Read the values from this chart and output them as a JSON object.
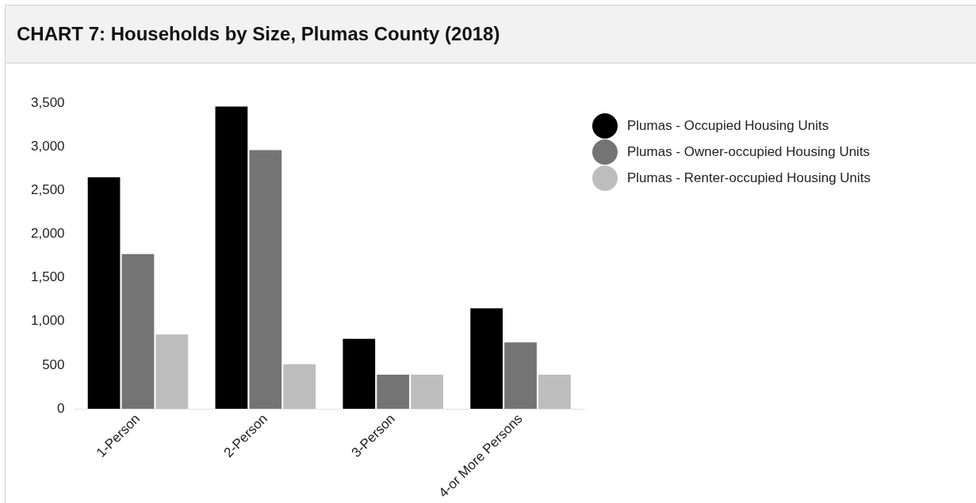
{
  "chart_data": {
    "type": "bar",
    "title": "CHART 7: Households by Size, Plumas County (2018)",
    "categories": [
      "1-Person",
      "2-Person",
      "3-Person",
      "4-or More Persons"
    ],
    "series": [
      {
        "name": "Plumas - Occupied Housing Units",
        "color": "#000000",
        "values": [
          2650,
          3460,
          800,
          1150
        ]
      },
      {
        "name": "Plumas - Owner-occupied Housing Units",
        "color": "#747474",
        "values": [
          1770,
          2960,
          390,
          760
        ]
      },
      {
        "name": "Plumas - Renter-occupied Housing Units",
        "color": "#bdbdbd",
        "values": [
          850,
          510,
          390,
          390
        ]
      }
    ],
    "ylim": [
      0,
      3500
    ],
    "yticks": [
      0,
      500,
      {
        "value": 1000,
        "label": "1,000"
      },
      {
        "value": 1500,
        "label": "1,500"
      },
      {
        "value": 2000,
        "label": "2,000"
      },
      {
        "value": 2500,
        "label": "2,500"
      },
      {
        "value": 3000,
        "label": "3,000"
      },
      {
        "value": 3500,
        "label": "3,500"
      }
    ],
    "grid": false,
    "legend": "top right"
  }
}
